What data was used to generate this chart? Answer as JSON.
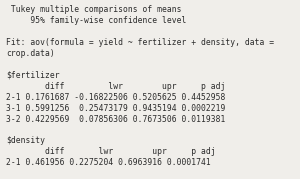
{
  "background_color": "#f0eeea",
  "text_color": "#2c2c2c",
  "font_family": "monospace",
  "font_size": 5.8,
  "lines": [
    " Tukey multiple comparisons of means",
    "     95% family-wise confidence level",
    "",
    "Fit: aov(formula = yield ~ fertilizer + density, data =",
    "crop.data)",
    "",
    "$fertilizer",
    "        diff         lwr        upr     p adj",
    "2-1 0.1761687 -0.16822506 0.5205625 0.4452958",
    "3-1 0.5991256  0.25473179 0.9435194 0.0002219",
    "3-2 0.4229569  0.07856306 0.7673506 0.0119381",
    "",
    "$density",
    "        diff       lwr        upr     p adj",
    "2-1 0.461956 0.2275204 0.6963916 0.0001741"
  ]
}
